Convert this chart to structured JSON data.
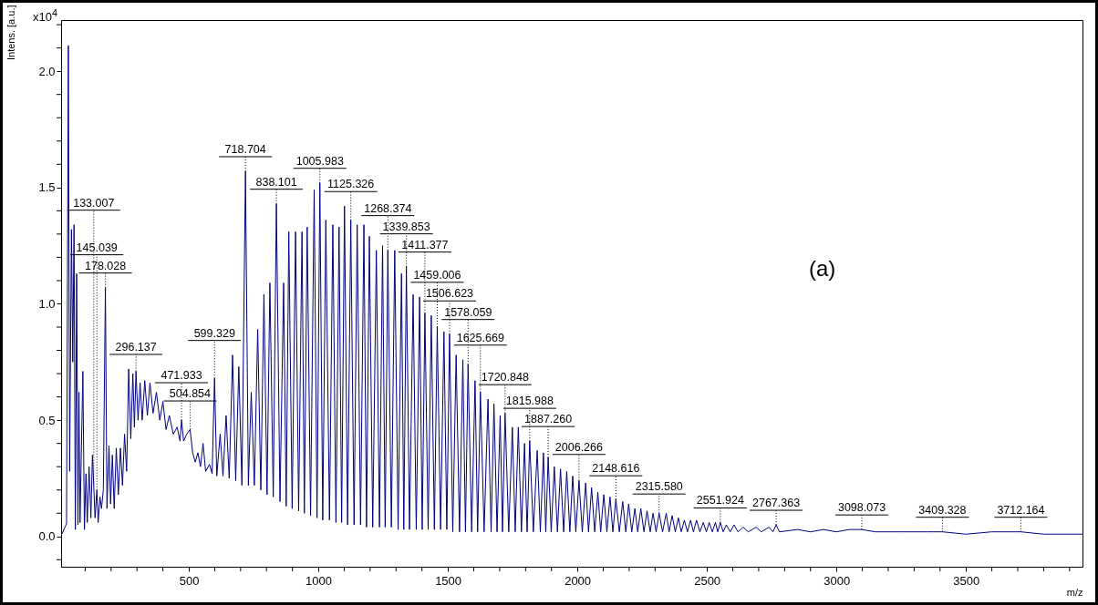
{
  "chart_data": {
    "type": "line",
    "xlabel": "m/z",
    "ylabel": "Intens. [a.u.]",
    "color": "#000080",
    "line_style": "solid",
    "marker": "none",
    "grid": false,
    "xlim": [
      7,
      3950
    ],
    "ylim": [
      -0.13,
      2.22
    ],
    "xticks": [
      {
        "value": 100,
        "label": null
      },
      {
        "value": 200,
        "label": null
      },
      {
        "value": 300,
        "label": null
      },
      {
        "value": 400,
        "label": null
      },
      500,
      {
        "value": 600,
        "label": null
      },
      {
        "value": 700,
        "label": null
      },
      {
        "value": 800,
        "label": null
      },
      {
        "value": 900,
        "label": null
      },
      1000,
      {
        "value": 1100,
        "label": null
      },
      {
        "value": 1200,
        "label": null
      },
      {
        "value": 1300,
        "label": null
      },
      {
        "value": 1400,
        "label": null
      },
      1500,
      {
        "value": 1600,
        "label": null
      },
      {
        "value": 1700,
        "label": null
      },
      {
        "value": 1800,
        "label": null
      },
      {
        "value": 1900,
        "label": null
      },
      2000,
      {
        "value": 2100,
        "label": null
      },
      {
        "value": 2200,
        "label": null
      },
      {
        "value": 2300,
        "label": null
      },
      {
        "value": 2400,
        "label": null
      },
      2500,
      {
        "value": 2600,
        "label": null
      },
      {
        "value": 2700,
        "label": null
      },
      {
        "value": 2800,
        "label": null
      },
      {
        "value": 2900,
        "label": null
      },
      3000,
      {
        "value": 3100,
        "label": null
      },
      {
        "value": 3200,
        "label": null
      },
      {
        "value": 3300,
        "label": null
      },
      {
        "value": 3400,
        "label": null
      },
      3500,
      {
        "value": 3600,
        "label": null
      },
      {
        "value": 3700,
        "label": null
      },
      {
        "value": 3800,
        "label": null
      },
      {
        "value": 3900,
        "label": null
      }
    ],
    "yticks": [
      {
        "value": -0.1,
        "label": null
      },
      {
        "value": 0,
        "label": "0.0"
      },
      {
        "value": 0.1,
        "label": null
      },
      {
        "value": 0.2,
        "label": null
      },
      {
        "value": 0.3,
        "label": null
      },
      {
        "value": 0.4,
        "label": null
      },
      {
        "value": 0.5,
        "label": "0.5"
      },
      {
        "value": 0.6,
        "label": null
      },
      {
        "value": 0.7,
        "label": null
      },
      {
        "value": 0.8,
        "label": null
      },
      {
        "value": 0.9,
        "label": null
      },
      {
        "value": 1,
        "label": "1.0"
      },
      {
        "value": 1.1,
        "label": null
      },
      {
        "value": 1.2,
        "label": null
      },
      {
        "value": 1.3,
        "label": null
      },
      {
        "value": 1.4,
        "label": null
      },
      {
        "value": 1.5,
        "label": "1.5"
      },
      {
        "value": 1.6,
        "label": null
      },
      {
        "value": 1.7,
        "label": null
      },
      {
        "value": 1.8,
        "label": null
      },
      {
        "value": 1.9,
        "label": null
      },
      {
        "value": 2,
        "label": "2.0"
      },
      {
        "value": 2.1,
        "label": null
      },
      {
        "value": 2.2,
        "label": null
      }
    ],
    "x": [
      10,
      28,
      35,
      40,
      47,
      52,
      57,
      62,
      67,
      72,
      76,
      80,
      91,
      97,
      103,
      108,
      115,
      122,
      128,
      133.007,
      138,
      145.039,
      150,
      157,
      163,
      170,
      178.028,
      184,
      192,
      198,
      205,
      212,
      220,
      228,
      236,
      244,
      252,
      260,
      268,
      276,
      284,
      290,
      296.137,
      304,
      312,
      320,
      330,
      340,
      350,
      362,
      375,
      388,
      400,
      412,
      425,
      440,
      455,
      466,
      471.933,
      480,
      492,
      504.854,
      515,
      525,
      535,
      545,
      555,
      565,
      580,
      590,
      599.329,
      608,
      621,
      632,
      644,
      656,
      669,
      681,
      693,
      705,
      718.704,
      730,
      741,
      753,
      766,
      778,
      790,
      802,
      813,
      826,
      838.101,
      852,
      866,
      876,
      886,
      899,
      912,
      924,
      937,
      946,
      957,
      970,
      984,
      995,
      1005.983,
      1017,
      1029,
      1043,
      1056,
      1068,
      1080,
      1090,
      1101,
      1113,
      1125.326,
      1138,
      1150,
      1163,
      1176,
      1186,
      1197,
      1210,
      1224,
      1236,
      1248,
      1258,
      1268.374,
      1282,
      1295,
      1308,
      1321,
      1330,
      1339.853,
      1352,
      1366,
      1378,
      1391,
      1401,
      1411.377,
      1424,
      1436,
      1448,
      1459.006,
      1472,
      1485,
      1496,
      1506.623,
      1519,
      1532,
      1545,
      1558,
      1568,
      1578.059,
      1592,
      1605,
      1615,
      1625.669,
      1640,
      1655,
      1667,
      1678,
      1690,
      1702,
      1711,
      1720.848,
      1735,
      1749,
      1760,
      1772,
      1784,
      1796,
      1806,
      1815.988,
      1830,
      1845,
      1857,
      1869,
      1878,
      1887.26,
      1899,
      1911,
      1923,
      1935,
      1947,
      1959,
      1971,
      1982,
      1994,
      2006.266,
      2019,
      2032,
      2043,
      2055,
      2067,
      2079,
      2090,
      2102,
      2114,
      2126,
      2137,
      2148.616,
      2162,
      2175,
      2187,
      2198,
      2210,
      2222,
      2233,
      2245,
      2257,
      2269,
      2281,
      2292,
      2304,
      2315.58,
      2329,
      2343,
      2354,
      2366,
      2378,
      2390,
      2401,
      2413,
      2425,
      2437,
      2448,
      2460,
      2473,
      2486,
      2498,
      2509,
      2521,
      2533,
      2542,
      2551.924,
      2563,
      2575,
      2590,
      2605,
      2620,
      2640,
      2660,
      2690,
      2710,
      2740,
      2755,
      2767.363,
      2780,
      2850,
      2900,
      2950,
      3000,
      3050,
      3098.073,
      3150,
      3250,
      3350,
      3409.328,
      3500,
      3600,
      3712.164,
      3800,
      3950
    ],
    "values": [
      0.01,
      0.055,
      2.11,
      0.28,
      1.32,
      0.75,
      1.34,
      0.03,
      1.13,
      0.05,
      0.62,
      0.06,
      0.71,
      0.03,
      0.27,
      0.06,
      0.3,
      0.08,
      0.35,
      0.22,
      0.08,
      0.2,
      0.06,
      0.17,
      0.12,
      0.2,
      1.07,
      0.12,
      0.39,
      0.14,
      0.35,
      0.12,
      0.38,
      0.18,
      0.38,
      0.22,
      0.44,
      0.28,
      0.72,
      0.42,
      0.7,
      0.47,
      0.71,
      0.5,
      0.66,
      0.5,
      0.67,
      0.52,
      0.66,
      0.53,
      0.62,
      0.5,
      0.58,
      0.46,
      0.52,
      0.44,
      0.47,
      0.41,
      0.5,
      0.41,
      0.44,
      0.46,
      0.36,
      0.32,
      0.36,
      0.3,
      0.4,
      0.28,
      0.31,
      0.27,
      0.68,
      0.26,
      0.44,
      0.26,
      0.52,
      0.25,
      0.78,
      0.24,
      0.73,
      0.22,
      1.57,
      0.22,
      0.62,
      0.22,
      0.89,
      0.2,
      1.04,
      0.18,
      1.09,
      0.17,
      1.43,
      0.15,
      1.09,
      0.13,
      1.31,
      0.12,
      1.31,
      0.11,
      1.31,
      0.1,
      1.33,
      0.09,
      1.49,
      0.08,
      1.52,
      0.07,
      1.36,
      0.07,
      1.34,
      0.06,
      1.33,
      0.06,
      1.42,
      0.05,
      1.36,
      0.05,
      1.34,
      0.05,
      1.34,
      0.04,
      1.29,
      0.04,
      1.23,
      0.04,
      1.25,
      0.04,
      1.23,
      0.04,
      1.23,
      0.03,
      1.13,
      0.03,
      1.16,
      0.03,
      1.04,
      0.03,
      1.03,
      0.03,
      0.96,
      0.03,
      0.95,
      0.03,
      0.9,
      0.03,
      0.88,
      0.03,
      0.87,
      0.02,
      0.78,
      0.02,
      0.76,
      0.02,
      0.74,
      0.02,
      0.67,
      0.02,
      0.62,
      0.02,
      0.59,
      0.02,
      0.57,
      0.02,
      0.52,
      0.02,
      0.53,
      0.02,
      0.47,
      0.02,
      0.47,
      0.02,
      0.4,
      0.02,
      0.41,
      0.02,
      0.37,
      0.02,
      0.36,
      0.02,
      0.34,
      0.02,
      0.3,
      0.02,
      0.29,
      0.02,
      0.28,
      0.02,
      0.26,
      0.02,
      0.24,
      0.02,
      0.23,
      0.02,
      0.21,
      0.02,
      0.19,
      0.02,
      0.18,
      0.02,
      0.17,
      0.02,
      0.16,
      0.02,
      0.15,
      0.02,
      0.14,
      0.02,
      0.12,
      0.02,
      0.12,
      0.02,
      0.11,
      0.02,
      0.1,
      0.02,
      0.1,
      0.02,
      0.1,
      0.02,
      0.09,
      0.02,
      0.08,
      0.02,
      0.07,
      0.02,
      0.07,
      0.02,
      0.07,
      0.02,
      0.06,
      0.02,
      0.06,
      0.02,
      0.06,
      0.02,
      0.06,
      0.02,
      0.05,
      0.02,
      0.05,
      0.02,
      0.04,
      0.02,
      0.04,
      0.02,
      0.04,
      0.02,
      0.05,
      0.02,
      0.03,
      0.02,
      0.03,
      0.02,
      0.03,
      0.03,
      0.02,
      0.02,
      0.02,
      0.02,
      0.01,
      0.02,
      0.02,
      0.01,
      0.01
    ],
    "annotations": [
      "x10$^{4}$",
      "(a)",
      {
        "text": "133.007",
        "x": 133.007,
        "y": 0.22
      },
      {
        "text": "145.039",
        "x": 145.039,
        "y": 0.2
      },
      {
        "text": "178.028",
        "x": 178.028,
        "y": 1.07
      },
      {
        "text": "296.137",
        "x": 296.137,
        "y": 0.71
      },
      {
        "text": "471.933",
        "x": 471.933,
        "y": 0.5
      },
      {
        "text": "504.854",
        "x": 504.854,
        "y": 0.46
      },
      {
        "text": "599.329",
        "x": 599.329,
        "y": 0.68
      },
      {
        "text": "718.704",
        "x": 718.704,
        "y": 1.57
      },
      {
        "text": "838.101",
        "x": 838.101,
        "y": 1.43
      },
      {
        "text": "1005.983",
        "x": 1005.983,
        "y": 1.52
      },
      {
        "text": "1125.326",
        "x": 1125.326,
        "y": 1.36
      },
      {
        "text": "1268.374",
        "x": 1268.374,
        "y": 1.23
      },
      {
        "text": "1339.853",
        "x": 1339.853,
        "y": 1.16
      },
      {
        "text": "1411.377",
        "x": 1411.377,
        "y": 0.96
      },
      {
        "text": "1459.006",
        "x": 1459.006,
        "y": 0.9
      },
      {
        "text": "1506.623",
        "x": 1506.623,
        "y": 0.87
      },
      {
        "text": "1578.059",
        "x": 1578.059,
        "y": 0.74
      },
      {
        "text": "1625.669",
        "x": 1625.669,
        "y": 0.62
      },
      {
        "text": "1720.848",
        "x": 1720.848,
        "y": 0.53
      },
      {
        "text": "1815.988",
        "x": 1815.988,
        "y": 0.41
      },
      {
        "text": "1887.260",
        "x": 1887.26,
        "y": 0.34
      },
      {
        "text": "2006.266",
        "x": 2006.266,
        "y": 0.24
      },
      {
        "text": "2148.616",
        "x": 2148.616,
        "y": 0.16
      },
      {
        "text": "2315.580",
        "x": 2315.58,
        "y": 0.1
      },
      {
        "text": "2551.924",
        "x": 2551.924,
        "y": 0.06
      },
      {
        "text": "2767.363",
        "x": 2767.363,
        "y": 0.05
      },
      {
        "text": "3098.073",
        "x": 3098.073,
        "y": 0.03
      },
      {
        "text": "3409.328",
        "x": 3409.328,
        "y": 0.02
      },
      {
        "text": "3712.164",
        "x": 3712.164,
        "y": 0.02
      }
    ]
  }
}
